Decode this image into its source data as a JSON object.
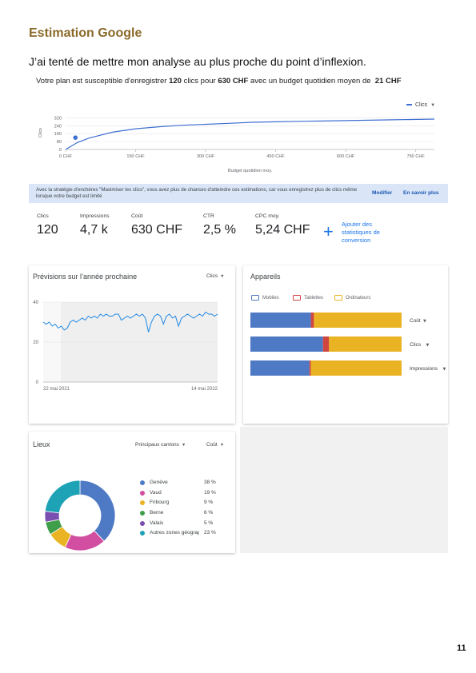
{
  "heading": "Estimation Google",
  "intro": "J’ai tenté de mettre mon analyse au plus proche du point d’inflexion.",
  "summary": {
    "prefix": "Votre plan est susceptible d'enregistrer",
    "clicks": "120",
    "clicks_word": "clics pour",
    "cost": "630 CHF",
    "middle": "avec un budget quotidien moyen de",
    "budget": "21 CHF"
  },
  "colors": {
    "primary_blue": "#3f6fd1",
    "mobile": "#4e79c5",
    "tablet": "#d0453f",
    "desktop": "#e9b323",
    "heading": "#8a6a2a",
    "banner": "#dae6f8"
  },
  "budget_chart": {
    "legend": "Clics",
    "xlabel": "Budget quotidien moy.",
    "ylabel": "Clics"
  },
  "banner": {
    "text": "Avec la stratégie d'enchères \"Maximiser les clics\", vous avez plus de chances d'atteindre ces estimations, car vous enregistrez plus de clics même lorsque votre budget est limité",
    "modify": "Modifier",
    "learn_more": "En savoir plus"
  },
  "metrics": [
    {
      "label": "Clics",
      "value": "120"
    },
    {
      "label": "Impressions",
      "value": "4,7 k"
    },
    {
      "label": "Coût",
      "value": "630 CHF"
    },
    {
      "label": "CTR",
      "value": "2,5 %"
    },
    {
      "label": "CPC moy.",
      "value": "5,24 CHF"
    }
  ],
  "add_conversion": {
    "icon": "plus-icon",
    "label": "Ajouter des statistiques de conversion"
  },
  "forecast": {
    "title": "Prévisions sur l’année prochaine",
    "metric": "Clics"
  },
  "devices": {
    "title": "Appareils",
    "legend": [
      "Mobiles",
      "Tablettes",
      "Ordinateurs"
    ],
    "rows": [
      {
        "label": "Coût",
        "mobile": 0.4,
        "tablet": 0.02,
        "desktop": 0.58
      },
      {
        "label": "Clics",
        "mobile": 0.48,
        "tablet": 0.04,
        "desktop": 0.48
      },
      {
        "label": "Impressions",
        "mobile": 0.39,
        "tablet": 0.01,
        "desktop": 0.6
      }
    ]
  },
  "locations": {
    "title": "Lieux",
    "dropdown1": "Principaux cantons",
    "dropdown2": "Coût",
    "items": [
      {
        "name": "Genève",
        "percent": "38 %",
        "value": 38,
        "color": "#4e79c5"
      },
      {
        "name": "Vaud",
        "percent": "19 %",
        "value": 19,
        "color": "#d24ea0"
      },
      {
        "name": "Fribourg",
        "percent": "9 %",
        "value": 9,
        "color": "#e9b323"
      },
      {
        "name": "Berne",
        "percent": "6 %",
        "value": 6,
        "color": "#3f9e4a"
      },
      {
        "name": "Valais",
        "percent": "5 %",
        "value": 5,
        "color": "#7b4fb0"
      },
      {
        "name": "Autres zones géographiques",
        "percent": "23 %",
        "value": 23,
        "color": "#1ea2b5"
      }
    ]
  },
  "page_number": "11",
  "chart_data": [
    {
      "type": "line",
      "x": [
        0,
        25,
        50,
        100,
        150,
        200,
        250,
        300,
        350,
        400,
        450,
        500,
        550,
        600,
        650,
        700,
        790
      ],
      "series": [
        {
          "name": "Clics",
          "values": [
            0,
            70,
            115,
            175,
            210,
            230,
            245,
            255,
            265,
            275,
            280,
            285,
            288,
            292,
            296,
            300,
            308
          ]
        }
      ],
      "highlight_point": {
        "x": 21,
        "y": 120
      },
      "xlabel": "Budget quotidien moy.",
      "ylabel": "Clics",
      "xticks": [
        "0 CHF",
        "150 CHF",
        "300 CHF",
        "450 CHF",
        "600 CHF",
        "750 CHF"
      ],
      "xtick_values": [
        0,
        150,
        300,
        450,
        600,
        750
      ],
      "yticks": [
        0,
        80,
        160,
        240,
        320
      ],
      "xlim": [
        0,
        790
      ],
      "ylim": [
        0,
        340
      ],
      "grid": true,
      "legend": "top-right"
    },
    {
      "type": "line",
      "x_start": "22 mai 2021",
      "x_end": "14 mai 2022",
      "xticks": [
        "22 mai 2021",
        "14 mai 2022"
      ],
      "yticks": [
        0,
        20,
        40
      ],
      "ylim": [
        0,
        40
      ],
      "series": [
        {
          "name": "Clics",
          "values": [
            30,
            29,
            30,
            28,
            29,
            27,
            28,
            26,
            27,
            30,
            31,
            30,
            31,
            32,
            31,
            33,
            32,
            33,
            32,
            34,
            33,
            34,
            33,
            33,
            34,
            34,
            31,
            32,
            33,
            32,
            33,
            34,
            33,
            34,
            32,
            25,
            30,
            33,
            34,
            33,
            29,
            33,
            34,
            32,
            33,
            28,
            32,
            33,
            34,
            33,
            32,
            33,
            34,
            33,
            35,
            34,
            34,
            33,
            34
          ]
        }
      ]
    },
    {
      "type": "bar",
      "orientation": "horizontal",
      "stacked": true,
      "categories": [
        "Coût",
        "Clics",
        "Impressions"
      ],
      "series": [
        {
          "name": "Mobiles",
          "values": [
            0.4,
            0.48,
            0.39
          ]
        },
        {
          "name": "Tablettes",
          "values": [
            0.02,
            0.04,
            0.01
          ]
        },
        {
          "name": "Ordinateurs",
          "values": [
            0.58,
            0.48,
            0.6
          ]
        }
      ]
    },
    {
      "type": "pie",
      "labels": [
        "Genève",
        "Vaud",
        "Fribourg",
        "Berne",
        "Valais",
        "Autres zones géographiques"
      ],
      "values": [
        38,
        19,
        9,
        6,
        5,
        23
      ]
    }
  ]
}
